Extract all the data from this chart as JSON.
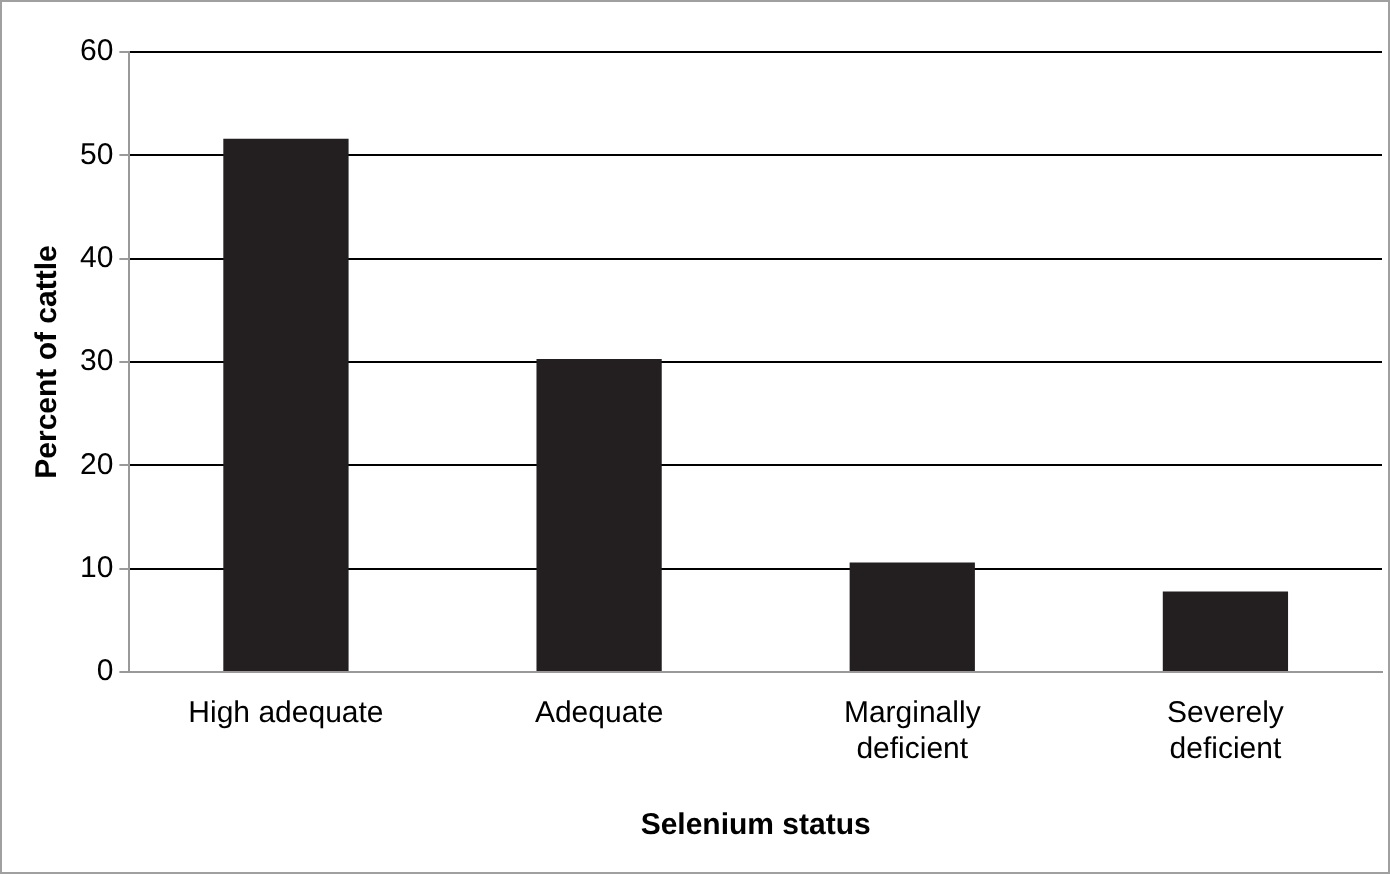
{
  "chart_data": {
    "type": "bar",
    "xlabel": "Selenium status",
    "ylabel": "Percent of cattle",
    "categories": [
      "High adequate",
      "Adequate",
      "Marginally deficient",
      "Severely deficient"
    ],
    "values": [
      51.6,
      30.3,
      10.6,
      7.8
    ],
    "color": "#231f20",
    "ylim": [
      0,
      60
    ],
    "yticks": [
      0,
      10,
      20,
      30,
      40,
      50,
      60
    ],
    "grid": "y",
    "legend": false
  }
}
